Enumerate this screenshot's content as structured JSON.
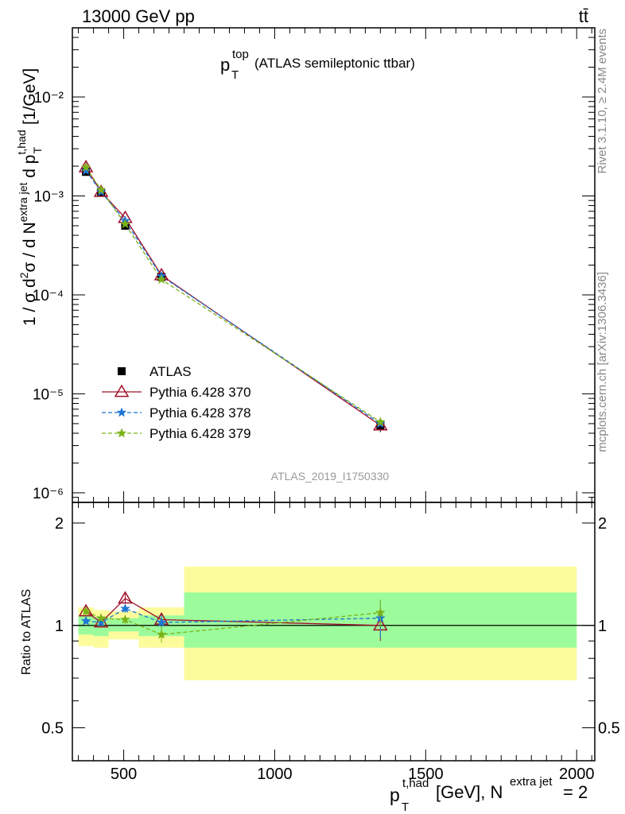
{
  "header": {
    "beam": "13000 GeV pp",
    "process": "tt̄"
  },
  "side_labels": {
    "rivet": "Rivet 3.1.10, ≥ 2.4M events",
    "mcplots": "mcplots.cern.ch [arXiv:1306.3436]"
  },
  "chart_data": [
    {
      "type": "scatter",
      "panel": "main",
      "title": "p_T^top (ATLAS semileptonic ttbar)",
      "title_main": "p",
      "title_sup": "top",
      "title_sub": "T",
      "title_rest": "(ATLAS semileptonic ttbar)",
      "ylabel": "1 / σ d²σ / d N^{extra jet} d p_T^{t,had} [1/GeV]",
      "y_scale": "log",
      "ylim": [
        8e-07,
        0.05
      ],
      "xlim": [
        330,
        2060
      ],
      "y_tick_labels": [
        "10⁻⁶",
        "10⁻⁵",
        "10⁻⁴",
        "10⁻³",
        "10⁻²"
      ],
      "legend": "middle-left",
      "watermark": "ATLAS_2019_I1750330",
      "series": [
        {
          "name": "ATLAS",
          "marker": "square",
          "color": "#000000",
          "x": [
            375,
            425,
            505,
            625,
            1350
          ],
          "y": [
            0.00175,
            0.00108,
            0.0005,
            0.000152,
            4.8e-06
          ],
          "yerr": [
            5e-05,
            3e-05,
            1.5e-05,
            5e-06,
            7e-07
          ]
        },
        {
          "name": "Pythia 6.428 370",
          "marker": "open-triangle",
          "line": "solid",
          "color": "#a0102a",
          "x": [
            375,
            425,
            505,
            625,
            1350
          ],
          "y": [
            0.00195,
            0.0011,
            0.0006,
            0.000158,
            4.8e-06
          ]
        },
        {
          "name": "Pythia 6.428 378",
          "marker": "star",
          "line": "dashed",
          "color": "#1f77d4",
          "x": [
            375,
            425,
            505,
            625,
            1350
          ],
          "y": [
            0.0018,
            0.0011,
            0.00056,
            0.000155,
            5e-06
          ]
        },
        {
          "name": "Pythia 6.428 379",
          "marker": "star",
          "line": "dashed",
          "color": "#7ab317",
          "x": [
            375,
            425,
            505,
            625,
            1350
          ],
          "y": [
            0.00195,
            0.00115,
            0.00052,
            0.000143,
            5.2e-06
          ]
        }
      ]
    },
    {
      "type": "line",
      "panel": "ratio",
      "ylabel": "Ratio to ATLAS",
      "y_scale": "log",
      "ylim": [
        0.4,
        2.3
      ],
      "xlim": [
        330,
        2060
      ],
      "x_tick_labels": [
        "500",
        "1000",
        "1500",
        "2000"
      ],
      "y_tick_labels": [
        "0.5",
        "1",
        "2"
      ],
      "xlabel": "p_T^{t,had} [GeV], N^{extra jet} = 2",
      "xlabel_p": "p",
      "xlabel_sup": "t,had",
      "xlabel_sub": "T",
      "xlabel_mid": "[GeV], N",
      "xlabel_sup2": "extra jet",
      "xlabel_end": "= 2",
      "bands": {
        "bin_edges": [
          350,
          400,
          450,
          550,
          700,
          2000
        ],
        "green_low": [
          0.94,
          0.93,
          0.96,
          0.93,
          0.86
        ],
        "green_high": [
          1.07,
          1.06,
          1.05,
          1.07,
          1.25
        ],
        "yellow_low": [
          0.87,
          0.86,
          0.91,
          0.86,
          0.69
        ],
        "yellow_high": [
          1.13,
          1.11,
          1.1,
          1.13,
          1.49
        ],
        "green_color": "#9cfc9c",
        "yellow_color": "#fcfc9c"
      },
      "series": [
        {
          "name": "Pythia 6.428 370",
          "color": "#a0102a",
          "x": [
            375,
            425,
            505,
            625,
            1350
          ],
          "y": [
            1.1,
            1.02,
            1.2,
            1.04,
            1.0
          ],
          "yerr": [
            0.03,
            0.02,
            0.04,
            0.05,
            0.1
          ]
        },
        {
          "name": "Pythia 6.428 378",
          "color": "#1f77d4",
          "x": [
            375,
            425,
            505,
            625,
            1350
          ],
          "y": [
            1.03,
            1.02,
            1.12,
            1.02,
            1.05
          ],
          "yerr": [
            0.02,
            0.02,
            0.03,
            0.05,
            0.13
          ]
        },
        {
          "name": "Pythia 6.428 379",
          "color": "#7ab317",
          "x": [
            375,
            425,
            505,
            625,
            1350
          ],
          "y": [
            1.1,
            1.05,
            1.04,
            0.94,
            1.09
          ],
          "yerr": [
            0.03,
            0.02,
            0.03,
            0.05,
            0.1
          ]
        }
      ]
    }
  ]
}
